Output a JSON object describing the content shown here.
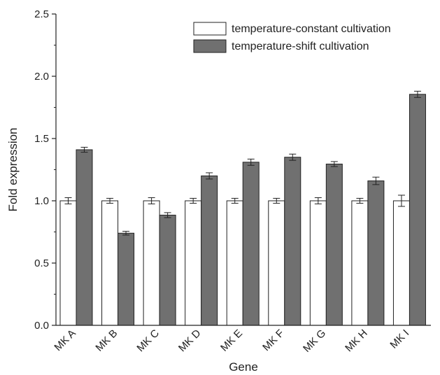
{
  "chart_data": {
    "type": "bar",
    "xlabel": "Gene",
    "ylabel": "Fold expression",
    "ylim": [
      0,
      2.5
    ],
    "yticks": [
      "0.0",
      "0.5",
      "1.0",
      "1.5",
      "2.0",
      "2.5"
    ],
    "categories": [
      "MK A",
      "MK B",
      "MK C",
      "MK D",
      "MK E",
      "MK F",
      "MK G",
      "MK H",
      "MK I"
    ],
    "series": [
      {
        "name": "temperature-constant cultivation",
        "color": "#ffffff",
        "values": [
          1.0,
          1.0,
          1.0,
          1.0,
          1.0,
          1.0,
          1.0,
          1.0,
          1.0
        ],
        "errors": [
          0.025,
          0.02,
          0.025,
          0.02,
          0.02,
          0.02,
          0.025,
          0.02,
          0.045
        ]
      },
      {
        "name": "temperature-shift cultivation",
        "color": "#707070",
        "values": [
          1.41,
          0.74,
          0.885,
          1.2,
          1.31,
          1.35,
          1.295,
          1.16,
          1.855
        ],
        "errors": [
          0.02,
          0.015,
          0.02,
          0.025,
          0.025,
          0.025,
          0.02,
          0.03,
          0.025
        ]
      }
    ],
    "legend_position": "top-right",
    "grid": false
  }
}
